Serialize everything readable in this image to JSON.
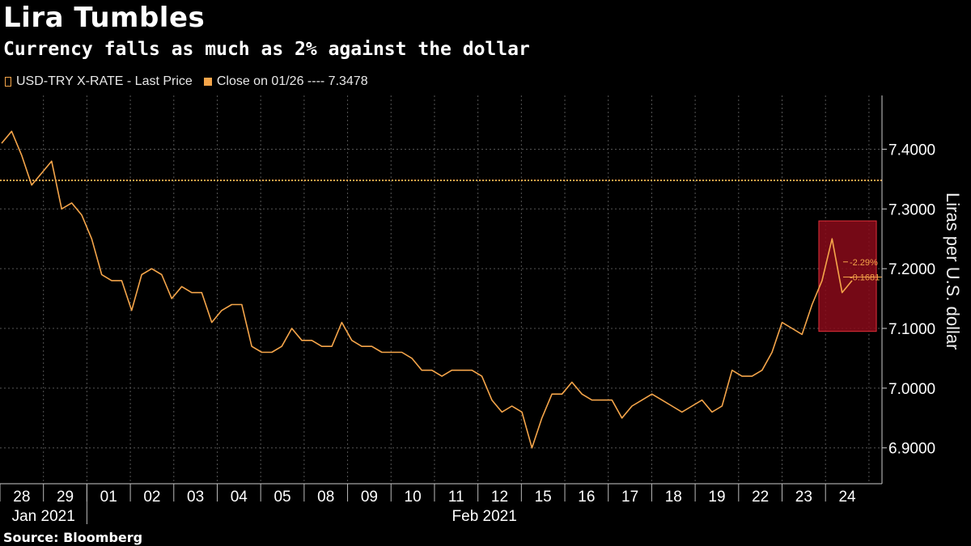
{
  "chart_data": {
    "type": "line",
    "title": "Lira Tumbles",
    "subtitle": "Currency falls as much as 2% against the dollar",
    "ylabel": "Liras per U.S. dollar",
    "xlabel": "",
    "ylim": [
      6.84,
      7.49
    ],
    "yticks": [
      "7.4000",
      "7.3000",
      "7.2000",
      "7.1000",
      "7.0000",
      "6.9000"
    ],
    "ytick_values": [
      7.4,
      7.3,
      7.2,
      7.1,
      7.0,
      6.9
    ],
    "x_day_labels": [
      "28",
      "29",
      "01",
      "02",
      "03",
      "04",
      "05",
      "08",
      "09",
      "10",
      "11",
      "12",
      "15",
      "16",
      "17",
      "18",
      "19",
      "22",
      "23",
      "24"
    ],
    "x_month_labels": [
      "Jan 2021",
      "Feb 2021"
    ],
    "grid": true,
    "legend_position": "top-left",
    "series": [
      {
        "name": "USD-TRY X-RATE - Last Price",
        "color": "#f5a54a",
        "values": [
          7.41,
          7.43,
          7.39,
          7.34,
          7.36,
          7.38,
          7.3,
          7.31,
          7.29,
          7.25,
          7.19,
          7.18,
          7.18,
          7.13,
          7.19,
          7.2,
          7.19,
          7.15,
          7.17,
          7.16,
          7.16,
          7.11,
          7.13,
          7.14,
          7.14,
          7.07,
          7.06,
          7.06,
          7.07,
          7.1,
          7.08,
          7.08,
          7.07,
          7.07,
          7.11,
          7.08,
          7.07,
          7.07,
          7.06,
          7.06,
          7.06,
          7.05,
          7.03,
          7.03,
          7.02,
          7.03,
          7.03,
          7.03,
          7.02,
          6.98,
          6.96,
          6.97,
          6.96,
          6.9,
          6.95,
          6.99,
          6.99,
          7.01,
          6.99,
          6.98,
          6.98,
          6.98,
          6.95,
          6.97,
          6.98,
          6.99,
          6.98,
          6.97,
          6.96,
          6.97,
          6.98,
          6.96,
          6.97,
          7.03,
          7.02,
          7.02,
          7.03,
          7.06,
          7.11,
          7.1,
          7.09,
          7.14,
          7.18,
          7.25,
          7.16,
          7.18
        ]
      },
      {
        "name": "Close on 01/26 ---- 7.3478",
        "color": "#f5a54a",
        "value": 7.3478
      }
    ],
    "annotations": [
      {
        "label": "-2.29%",
        "y": 7.21
      },
      {
        "label": "-0.1681",
        "y": 7.19
      }
    ],
    "highlight_range": {
      "x_start_index": 82,
      "x_end_index": 85,
      "y_low": 7.095,
      "y_high": 7.28,
      "color": "#8a0a1a"
    }
  },
  "source": "Source: Bloomberg"
}
